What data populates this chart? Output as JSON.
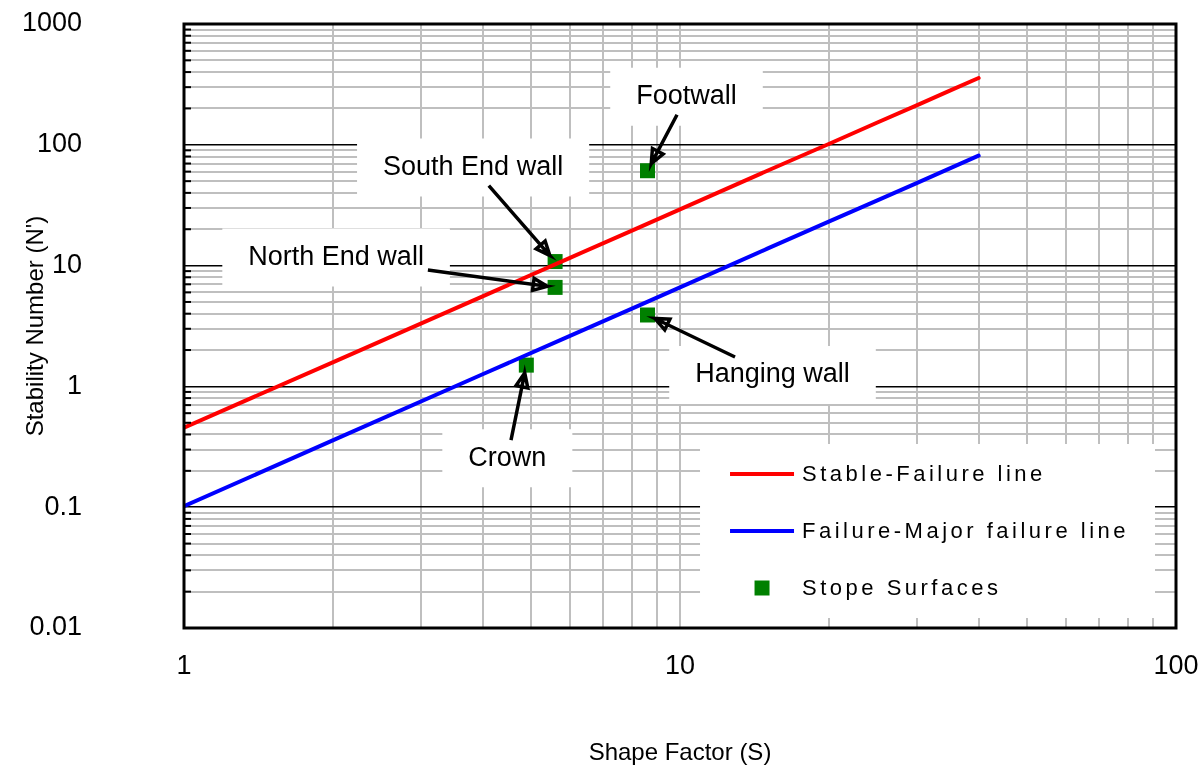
{
  "chart_data": {
    "type": "line",
    "xlabel": "Shape Factor (S)",
    "ylabel": "Stability Number (N')",
    "log": "xy",
    "xlim": [
      1,
      100
    ],
    "ylim": [
      0.01,
      1000
    ],
    "xticks": [
      1,
      {
        "value": 2,
        "label": null
      },
      {
        "value": 3,
        "label": null
      },
      {
        "value": 4,
        "label": null
      },
      {
        "value": 5,
        "label": null
      },
      {
        "value": 6,
        "label": null
      },
      {
        "value": 7,
        "label": null
      },
      {
        "value": 8,
        "label": null
      },
      {
        "value": 9,
        "label": null
      },
      10,
      {
        "value": 20,
        "label": null
      },
      {
        "value": 30,
        "label": null
      },
      {
        "value": 40,
        "label": null
      },
      {
        "value": 50,
        "label": null
      },
      {
        "value": 60,
        "label": null
      },
      {
        "value": 70,
        "label": null
      },
      {
        "value": 80,
        "label": null
      },
      {
        "value": 90,
        "label": null
      },
      100
    ],
    "yticks": [
      0.01,
      {
        "value": 0.02,
        "label": null
      },
      {
        "value": 0.03,
        "label": null
      },
      {
        "value": 0.04,
        "label": null
      },
      {
        "value": 0.05,
        "label": null
      },
      {
        "value": 0.06,
        "label": null
      },
      {
        "value": 0.07,
        "label": null
      },
      {
        "value": 0.08,
        "label": null
      },
      {
        "value": 0.09,
        "label": null
      },
      0.1,
      {
        "value": 0.2,
        "label": null
      },
      {
        "value": 0.3,
        "label": null
      },
      {
        "value": 0.4,
        "label": null
      },
      {
        "value": 0.5,
        "label": null
      },
      {
        "value": 0.6,
        "label": null
      },
      {
        "value": 0.7,
        "label": null
      },
      {
        "value": 0.8,
        "label": null
      },
      {
        "value": 0.9,
        "label": null
      },
      1,
      {
        "value": 2,
        "label": null
      },
      {
        "value": 3,
        "label": null
      },
      {
        "value": 4,
        "label": null
      },
      {
        "value": 5,
        "label": null
      },
      {
        "value": 6,
        "label": null
      },
      {
        "value": 7,
        "label": null
      },
      {
        "value": 8,
        "label": null
      },
      {
        "value": 9,
        "label": null
      },
      10,
      {
        "value": 20,
        "label": null
      },
      {
        "value": 30,
        "label": null
      },
      {
        "value": 40,
        "label": null
      },
      {
        "value": 50,
        "label": null
      },
      {
        "value": 60,
        "label": null
      },
      {
        "value": 70,
        "label": null
      },
      {
        "value": 80,
        "label": null
      },
      {
        "value": 90,
        "label": null
      },
      100,
      {
        "value": 200,
        "label": null
      },
      {
        "value": 300,
        "label": null
      },
      {
        "value": 400,
        "label": null
      },
      {
        "value": 500,
        "label": null
      },
      {
        "value": 600,
        "label": null
      },
      {
        "value": 700,
        "label": null
      },
      {
        "value": 800,
        "label": null
      },
      {
        "value": 900,
        "label": null
      },
      1000
    ],
    "grid": true,
    "legend": "bottom right",
    "series": [
      {
        "name": "Stable-Failure line",
        "color": "#ff0000",
        "x": [
          1,
          2,
          4,
          6,
          8,
          10,
          15,
          20,
          25,
          30,
          35,
          40
        ],
        "values": [
          0.455,
          1.59,
          5.57,
          11.6,
          19.5,
          29.2,
          61,
          102,
          153,
          212,
          281,
          357
        ]
      },
      {
        "name": "Failure-Major failure line",
        "color": "#0000ff",
        "x": [
          1,
          2,
          4,
          6,
          8,
          10,
          15,
          20,
          25,
          30,
          35,
          40
        ],
        "values": [
          0.102,
          0.359,
          1.26,
          2.62,
          4.41,
          6.61,
          13.8,
          23.2,
          34.7,
          48.2,
          63.8,
          81.3
        ]
      },
      {
        "name": "Stope Surfaces",
        "type": "scatter",
        "marker": "square",
        "color": "#008000",
        "x": [
          8.6,
          5.6,
          5.6,
          8.6,
          4.9
        ],
        "values": [
          61,
          10.8,
          6.6,
          3.9,
          1.5
        ]
      }
    ],
    "annotations": [
      {
        "text": "Footwall",
        "x": 8.6,
        "y": 61
      },
      {
        "text": "South End wall",
        "x": 5.6,
        "y": 10.8
      },
      {
        "text": "North End wall",
        "x": 5.6,
        "y": 6.6
      },
      {
        "text": "Hanging wall",
        "x": 8.6,
        "y": 3.9
      },
      {
        "text": "Crown",
        "x": 4.9,
        "y": 1.5
      }
    ]
  }
}
